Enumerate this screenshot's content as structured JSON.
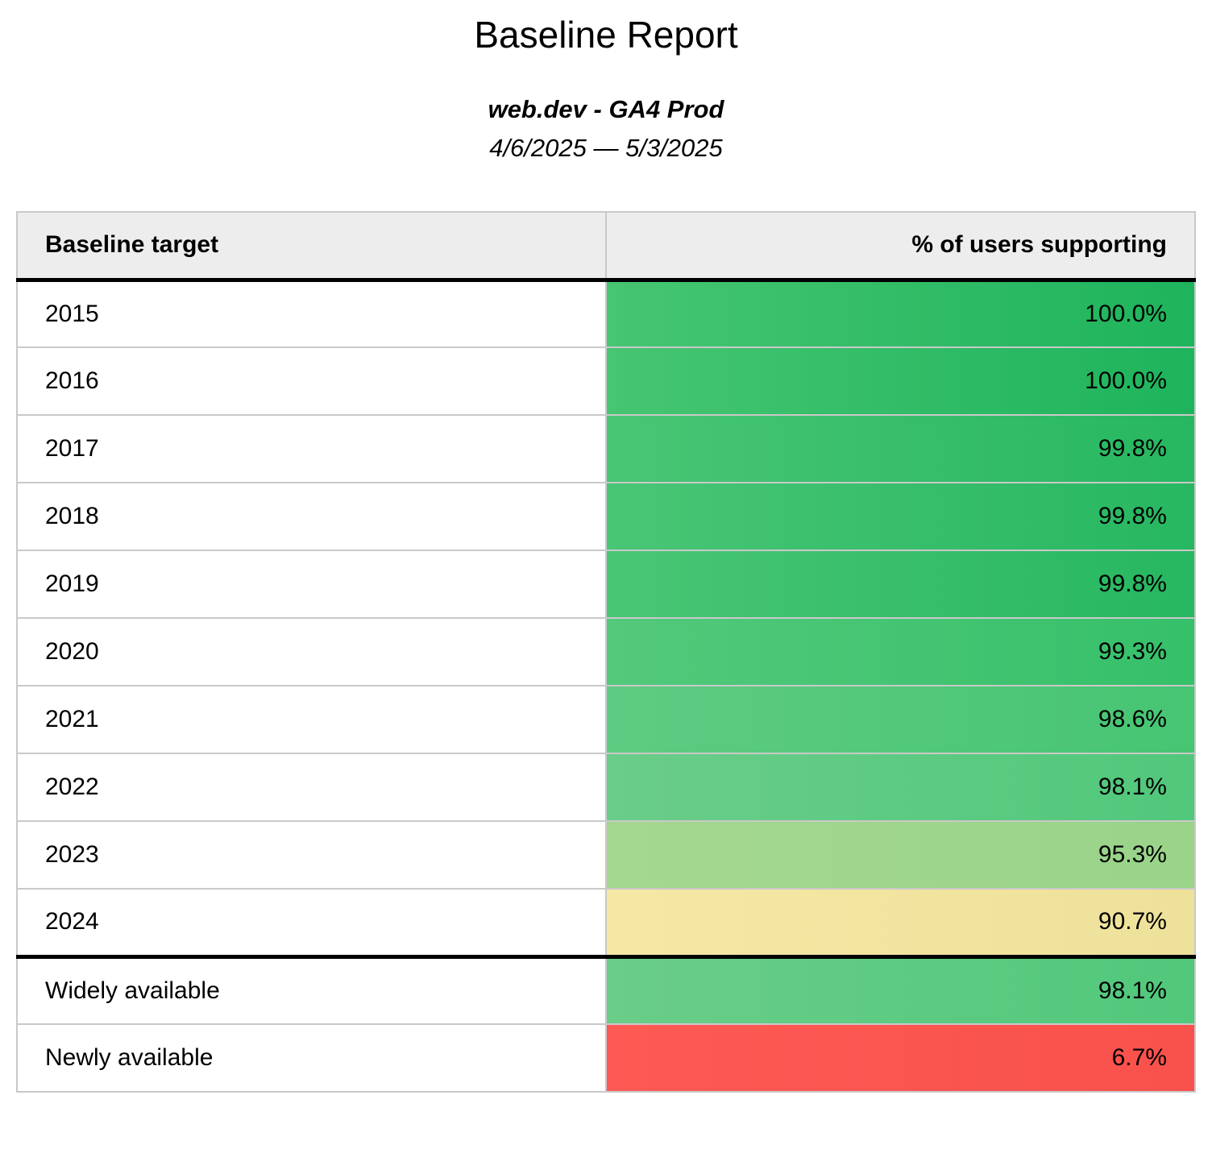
{
  "report": {
    "title": "Baseline Report",
    "subtitle": "web.dev - GA4 Prod",
    "date_range": "4/6/2025 — 5/3/2025"
  },
  "table": {
    "columns": [
      "Baseline target",
      "% of users supporting"
    ],
    "rows": [
      {
        "target": "2015",
        "value": "100.0%",
        "colors": [
          "#46c572",
          "#1eb45c"
        ]
      },
      {
        "target": "2016",
        "value": "100.0%",
        "colors": [
          "#46c572",
          "#1eb45c"
        ]
      },
      {
        "target": "2017",
        "value": "99.8%",
        "colors": [
          "#49c675",
          "#27b761"
        ]
      },
      {
        "target": "2018",
        "value": "99.8%",
        "colors": [
          "#49c675",
          "#27b761"
        ]
      },
      {
        "target": "2019",
        "value": "99.8%",
        "colors": [
          "#49c675",
          "#27b761"
        ]
      },
      {
        "target": "2020",
        "value": "99.3%",
        "colors": [
          "#53c97b",
          "#36c06a"
        ]
      },
      {
        "target": "2021",
        "value": "98.6%",
        "colors": [
          "#5fcb82",
          "#46c573"
        ]
      },
      {
        "target": "2022",
        "value": "98.1%",
        "colors": [
          "#6acd88",
          "#51c87b"
        ]
      },
      {
        "target": "2023",
        "value": "95.3%",
        "colors": [
          "#a4d78f",
          "#99d489"
        ]
      },
      {
        "target": "2024",
        "value": "90.7%",
        "colors": [
          "#f5e8a5",
          "#eee19a"
        ]
      },
      {
        "target": "Widely available",
        "value": "98.1%",
        "colors": [
          "#6acd88",
          "#51c87b"
        ]
      },
      {
        "target": "Newly available",
        "value": "6.7%",
        "colors": [
          "#fd5a55",
          "#f9514b"
        ]
      }
    ]
  },
  "chart_data": {
    "type": "table",
    "title": "Baseline Report",
    "subtitle": "web.dev - GA4 Prod",
    "date_range": "4/6/2025 — 5/3/2025",
    "columns": [
      "Baseline target",
      "% of users supporting"
    ],
    "rows": [
      [
        "2015",
        100.0
      ],
      [
        "2016",
        100.0
      ],
      [
        "2017",
        99.8
      ],
      [
        "2018",
        99.8
      ],
      [
        "2019",
        99.8
      ],
      [
        "2020",
        99.3
      ],
      [
        "2021",
        98.6
      ],
      [
        "2022",
        98.1
      ],
      [
        "2023",
        95.3
      ],
      [
        "2024",
        90.7
      ],
      [
        "Widely available",
        98.1
      ],
      [
        "Newly available",
        6.7
      ]
    ],
    "value_format": "percent",
    "layout_hints": {
      "header_background": "#ededed",
      "grid_border_color": "#c9c9c9",
      "section_divider_color": "#000000",
      "section_break_before_row": "Widely available"
    },
    "color_scale": {
      "high": "#1eb45c",
      "mid": "#f5e8a5",
      "low": "#fd5a55"
    }
  }
}
